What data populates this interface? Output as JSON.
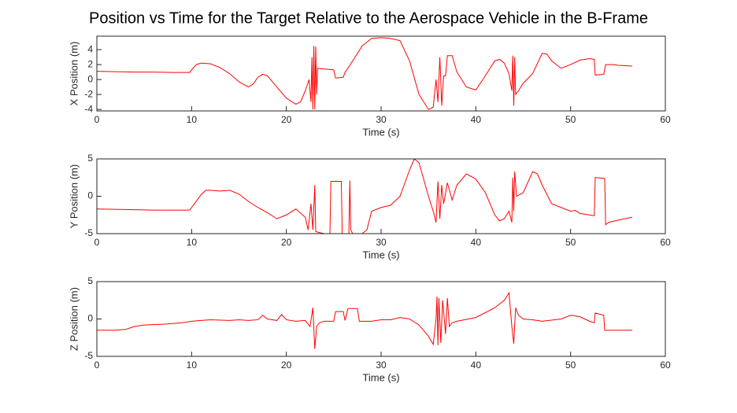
{
  "title": "Position vs Time for the Target Relative to the Aerospace Vehicle in the B-Frame",
  "chart_data": [
    {
      "type": "line",
      "xlabel": "Time (s)",
      "ylabel": "X Position (m)",
      "color": "#ff0000",
      "xlim": [
        0,
        60
      ],
      "xticks": [
        0,
        10,
        20,
        30,
        40,
        50,
        60
      ],
      "ylim": [
        -4.2,
        5.8
      ],
      "yticks": [
        -4,
        -2,
        0,
        2,
        4
      ],
      "x": [
        0,
        2,
        4,
        6,
        8,
        9.8,
        10,
        10.5,
        11,
        12,
        13,
        14,
        15,
        16,
        16.5,
        17,
        17.5,
        18,
        19,
        20,
        21,
        21.5,
        22,
        22.4,
        22.6,
        22.7,
        22.8,
        22.9,
        23.0,
        23.1,
        23.2,
        23.3,
        24,
        25,
        25.2,
        26,
        26.2,
        26.5,
        27,
        28,
        29,
        30,
        31,
        32,
        33,
        34,
        35,
        35.5,
        35.8,
        36,
        36.2,
        36.4,
        36.6,
        36.8,
        37,
        37.5,
        38,
        39,
        40,
        41,
        42,
        42.5,
        43,
        43.5,
        43.8,
        43.9,
        44,
        44.1,
        44.2,
        44.5,
        45,
        46,
        47,
        47.5,
        48,
        49,
        50,
        51,
        52,
        52.5,
        52.6,
        53.5,
        53.7,
        54.5,
        55,
        56.5
      ],
      "values": [
        1.1,
        1.05,
        1.0,
        1.0,
        0.95,
        0.95,
        1.3,
        2.0,
        2.2,
        2.1,
        1.6,
        0.8,
        -0.3,
        -1.0,
        -0.6,
        0.3,
        0.7,
        0.5,
        -1.0,
        -2.5,
        -3.3,
        -3.0,
        -1.5,
        0,
        -3,
        3,
        -4,
        4.5,
        -4,
        4.4,
        -2,
        1.5,
        1.4,
        1.3,
        0.2,
        0.3,
        1.0,
        1.5,
        2.5,
        4.5,
        5.5,
        5.6,
        5.5,
        5.2,
        2.5,
        -2,
        -4.0,
        -3.7,
        0,
        -3,
        3,
        -3.5,
        0.5,
        0.5,
        3.2,
        3.2,
        1,
        -1,
        -1.4,
        0.5,
        2.5,
        2.7,
        2.2,
        0.8,
        -1.5,
        3.2,
        -3.5,
        3,
        -2,
        -1.5,
        -0.5,
        0.8,
        3.5,
        3.4,
        2.5,
        1.5,
        2.0,
        2.6,
        2.8,
        2.7,
        0.6,
        0.7,
        2.0,
        2.0,
        1.9,
        1.8
      ]
    },
    {
      "type": "line",
      "xlabel": "Time (s)",
      "ylabel": "Y Position (m)",
      "color": "#ff0000",
      "xlim": [
        0,
        60
      ],
      "xticks": [
        0,
        10,
        20,
        30,
        40,
        50,
        60
      ],
      "ylim": [
        -5,
        5
      ],
      "yticks": [
        -5,
        0,
        5
      ],
      "x": [
        0,
        2,
        4,
        6,
        8,
        9.8,
        10,
        11,
        11.5,
        12,
        13,
        14,
        15,
        16,
        17,
        18,
        19,
        20,
        21,
        22,
        22.3,
        22.6,
        22.8,
        23,
        23.1,
        23.3,
        24,
        24.6,
        24.7,
        25.8,
        25.9,
        26.6,
        26.7,
        26.8,
        27,
        28,
        28.5,
        29,
        30,
        31,
        32,
        33,
        33.5,
        34,
        35,
        35.5,
        35.8,
        36,
        36.2,
        36.4,
        36.6,
        37,
        37.5,
        38,
        39,
        40,
        41,
        42,
        42.5,
        43,
        43.5,
        43.8,
        43.9,
        44,
        44.1,
        44.3,
        45,
        46,
        46.5,
        47,
        48,
        49,
        50,
        50.5,
        51,
        52,
        52.5,
        52.6,
        53.6,
        53.7,
        54,
        55,
        56.5
      ],
      "values": [
        -1.7,
        -1.75,
        -1.8,
        -1.85,
        -1.85,
        -1.85,
        -1.5,
        0.2,
        0.8,
        0.8,
        0.7,
        0.8,
        0.3,
        -0.7,
        -1.5,
        -2.2,
        -3.0,
        -2.5,
        -1.7,
        -2.8,
        -4.5,
        -1,
        -4.5,
        1.5,
        -4.7,
        -4.8,
        -5.0,
        -5.0,
        2.0,
        2.0,
        -5.0,
        -5.0,
        2.1,
        -4.5,
        -5,
        -5,
        -4.5,
        -2,
        -1.5,
        -1.2,
        0,
        3.5,
        5.0,
        4.5,
        0,
        -2,
        -3.5,
        2,
        -3,
        1.5,
        -1,
        1.8,
        -0.5,
        1.5,
        3.0,
        2.3,
        0.5,
        -2.5,
        -3.3,
        -3.0,
        -2,
        -3.5,
        2.5,
        -2,
        3.3,
        0,
        0.5,
        3.3,
        3.0,
        1.5,
        -1,
        -1.5,
        -2,
        -1.9,
        -2.3,
        -2.5,
        -2.6,
        2.5,
        2.4,
        -3.8,
        -3.5,
        -3.2,
        -2.8
      ]
    },
    {
      "type": "line",
      "xlabel": "Time (s)",
      "ylabel": "Z Position (m)",
      "color": "#ff0000",
      "xlim": [
        0,
        60
      ],
      "xticks": [
        0,
        10,
        20,
        30,
        40,
        50,
        60
      ],
      "ylim": [
        -5,
        5
      ],
      "yticks": [
        -5,
        0,
        5
      ],
      "x": [
        0,
        2,
        3,
        4,
        5,
        7,
        9,
        10,
        12,
        14,
        15,
        16,
        17,
        17.5,
        18,
        19,
        19.5,
        20,
        21,
        22,
        22.5,
        22.8,
        23,
        23.2,
        23.5,
        24,
        25,
        25.2,
        26,
        26.2,
        26.5,
        27.5,
        27.7,
        29,
        30,
        31,
        32,
        33,
        34,
        35,
        35.5,
        35.8,
        35.9,
        36,
        36.1,
        36.3,
        36.5,
        36.8,
        37,
        37.2,
        37.5,
        38,
        40,
        42,
        43,
        43.5,
        43.8,
        44,
        44.2,
        44.5,
        45,
        46,
        47,
        49,
        50,
        51,
        52,
        52.5,
        52.6,
        53.5,
        53.6,
        55,
        56.5
      ],
      "values": [
        -1.5,
        -1.5,
        -1.4,
        -1.0,
        -0.8,
        -0.7,
        -0.5,
        -0.3,
        -0.1,
        -0.2,
        -0.1,
        -0.2,
        -0.1,
        0.5,
        0,
        -0.2,
        0.6,
        -0.1,
        -0.3,
        -0.2,
        -1,
        1.5,
        -4,
        -1,
        -0.5,
        -0.3,
        -0.3,
        1.0,
        1.0,
        -0.2,
        1.4,
        1.4,
        -0.3,
        -0.3,
        -0.1,
        -0.1,
        0.2,
        0,
        -0.8,
        -2.3,
        -3.4,
        0,
        3,
        -3.5,
        2.8,
        -3.2,
        2.5,
        -2,
        2.8,
        -1,
        -0.5,
        -0.3,
        0.2,
        1.5,
        2.5,
        3.5,
        -1,
        -3.3,
        1.5,
        0.5,
        0,
        -0.1,
        -0.3,
        0,
        0.5,
        0.3,
        -0.3,
        -0.5,
        0.8,
        0.5,
        -1.5,
        -1.5,
        -1.5
      ]
    }
  ]
}
